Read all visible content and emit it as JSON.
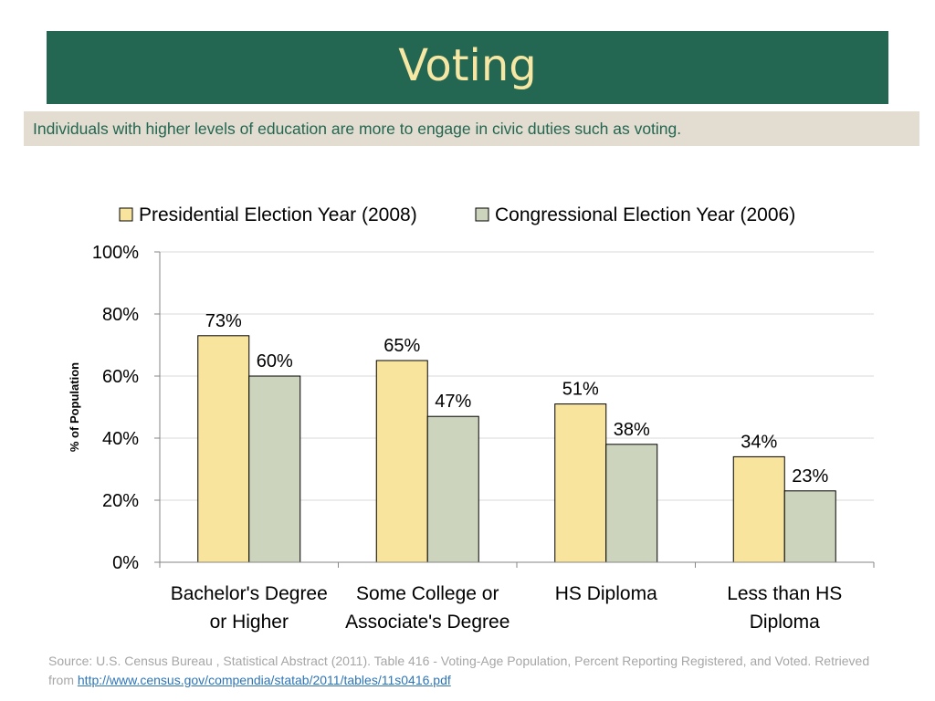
{
  "slide": {
    "title": "Voting",
    "subtitle": "Individuals with higher levels of education are more to engage in civic duties such as voting."
  },
  "chart_data": {
    "type": "bar",
    "categories": [
      [
        "Bachelor's Degree",
        "or Higher"
      ],
      [
        "Some College or",
        "Associate's Degree"
      ],
      [
        "HS Diploma"
      ],
      [
        "Less than HS",
        "Diploma"
      ]
    ],
    "series": [
      {
        "name": "Presidential Election Year (2008)",
        "color": "#f9e49d",
        "values": [
          73,
          65,
          51,
          34
        ],
        "labels": [
          "73%",
          "65%",
          "51%",
          "34%"
        ]
      },
      {
        "name": "Congressional Election Year (2006)",
        "color": "#cdd4bd",
        "values": [
          60,
          47,
          38,
          23
        ],
        "labels": [
          "60%",
          "47%",
          "38%",
          "23%"
        ]
      }
    ],
    "ylabel": "% of Population",
    "ylim": [
      0,
      100
    ],
    "yticks": [
      0,
      20,
      40,
      60,
      80,
      100
    ],
    "ytick_labels": [
      "0%",
      "20%",
      "40%",
      "60%",
      "80%",
      "100%"
    ],
    "legend_position": "top",
    "grid": true,
    "gridline_color": "#d9d9d9",
    "axis_color": "#868686"
  },
  "source": {
    "text": "Source: U.S. Census Bureau , Statistical Abstract (2011). Table 416 - Voting-Age Population, Percent Reporting Registered, and Voted. Retrieved from ",
    "link_text": "http://www.census.gov/compendia/statab/2011/tables/11s0416.pdf"
  }
}
